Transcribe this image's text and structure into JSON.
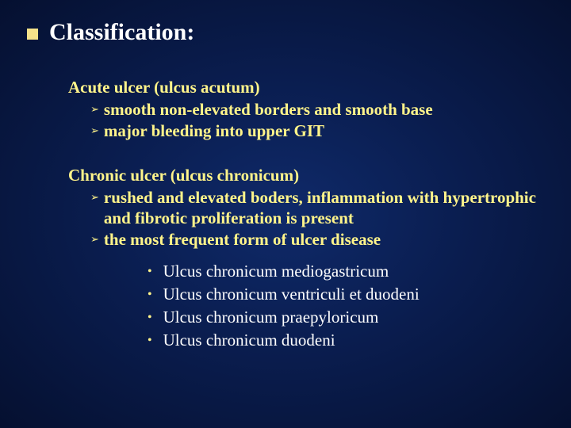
{
  "colors": {
    "background_center": "#0f2a6a",
    "background_mid": "#0a1d4f",
    "background_edge": "#051030",
    "title_color": "#ffffff",
    "accent_yellow": "#fff48a",
    "bullet_square": "#f5e28a",
    "body_white": "#ffffff"
  },
  "typography": {
    "title_fontsize": 30,
    "section_head_fontsize": 21,
    "sub_text_fontsize": 21,
    "dot_text_fontsize": 21,
    "font_family": "Georgia, Times New Roman, serif"
  },
  "title": "Classification:",
  "sections": [
    {
      "heading": "Acute ulcer (ulcus acutum)",
      "items": [
        "smooth non-elevated borders and smooth base",
        "major bleeding into upper GIT"
      ]
    },
    {
      "heading": "Chronic ulcer (ulcus chronicum)",
      "items": [
        "rushed and elevated boders, inflammation with hypertrophic and fibrotic proliferation is present",
        "the most frequent form of ulcer disease"
      ]
    }
  ],
  "dot_items": [
    "Ulcus chronicum mediogastricum",
    "Ulcus chronicum ventriculi et duodeni",
    "Ulcus chronicum praepyloricum",
    "Ulcus chronicum duodeni"
  ]
}
